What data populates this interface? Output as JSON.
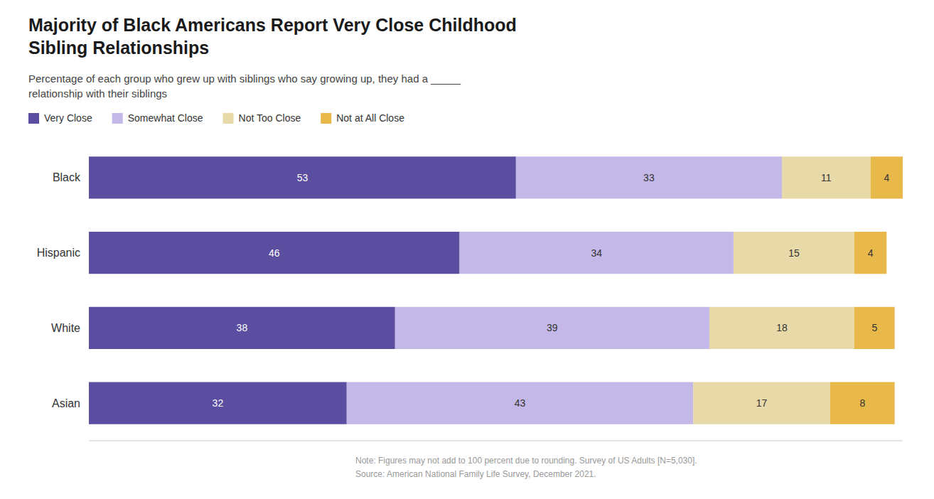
{
  "chart_data": {
    "type": "bar",
    "orientation": "horizontal",
    "stacked": true,
    "data_labels": true,
    "tick_labels": "y",
    "legend": "upper left",
    "grid": false,
    "title": "Majority of Black Americans Report Very Close Childhood\nSibling Relationships",
    "subtitle": "Percentage of each group who grew up with siblings who say growing up, they had a _____\nrelationship with their siblings",
    "note": "Note: Figures may not add to 100 percent due to rounding. Survey of US Adults [N=5,030].\nSource: American National Family Life Survey, December 2021.",
    "categories": [
      "Black",
      "Hispanic",
      "White",
      "Asian"
    ],
    "series": [
      {
        "name": "Very Close",
        "color": "#5b4ea0",
        "values": [
          53,
          46,
          38,
          32
        ]
      },
      {
        "name": "Somewhat Close",
        "color": "#c4b8e8",
        "values": [
          33,
          34,
          39,
          43
        ]
      },
      {
        "name": "Not Too Close",
        "color": "#e8d9a8",
        "values": [
          11,
          15,
          18,
          17
        ]
      },
      {
        "name": "Not at All Close",
        "color": "#e8b84b",
        "values": [
          4,
          4,
          5,
          8
        ]
      }
    ],
    "xlim": [
      0,
      101
    ]
  }
}
